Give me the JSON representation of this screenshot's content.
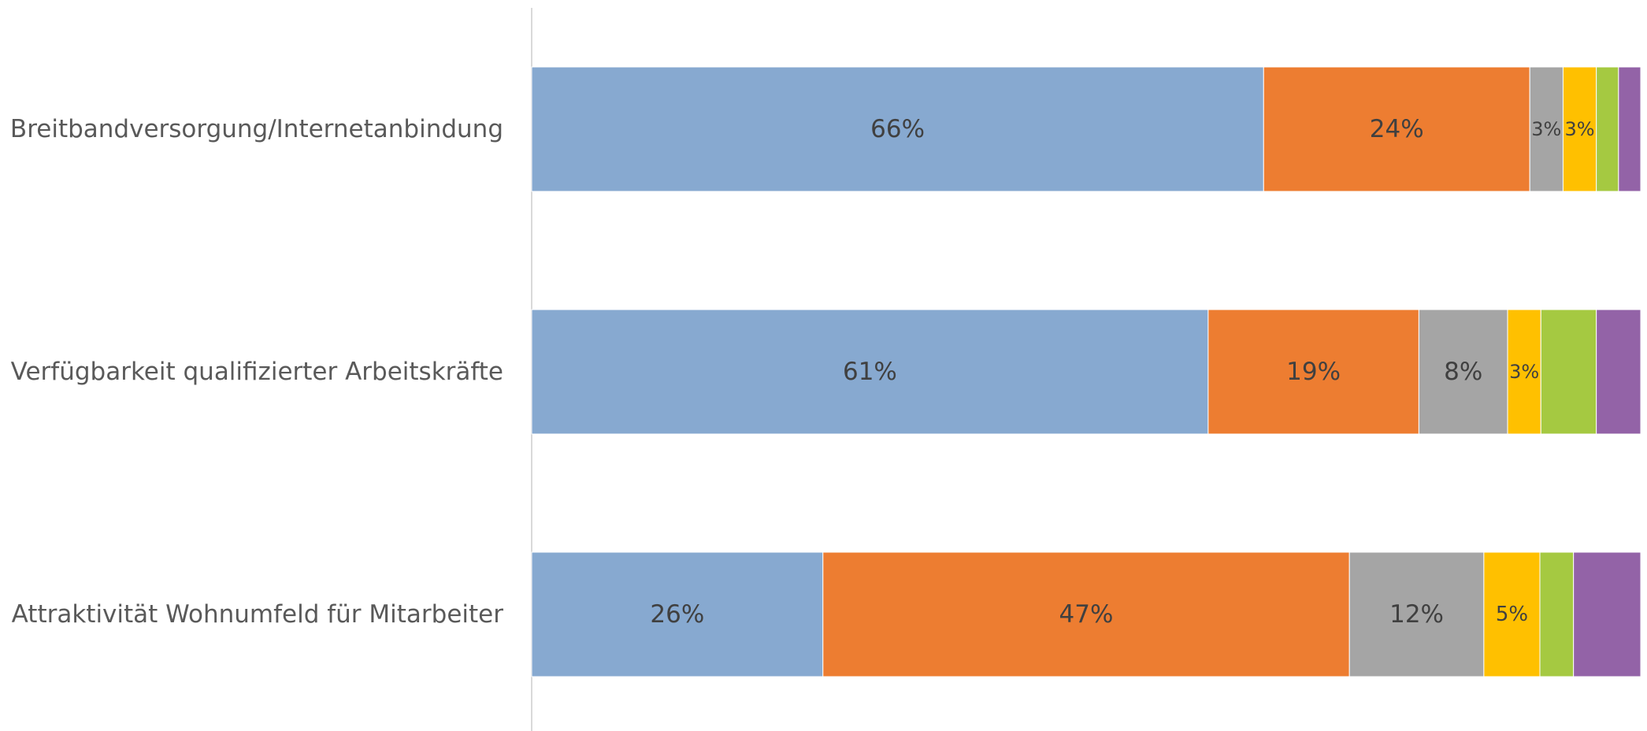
{
  "chart_data": {
    "type": "bar",
    "orientation": "horizontal",
    "stacked": "100%",
    "title": "",
    "xlabel": "",
    "ylabel": "",
    "xlim": [
      0,
      100
    ],
    "grid": false,
    "legend": "none",
    "categories": [
      "Breitbandversorgung/Internetanbindung",
      "Verfügbarkeit qualifizierter Arbeitskräfte",
      "Attraktivität Wohnumfeld für Mitarbeiter"
    ],
    "series": [
      {
        "color": "#87A9D0",
        "values": [
          66,
          61,
          26
        ],
        "labels": [
          "66%",
          "61%",
          "26%"
        ]
      },
      {
        "color": "#ED7D31",
        "values": [
          24,
          19,
          47
        ],
        "labels": [
          "24%",
          "19%",
          "47%"
        ]
      },
      {
        "color": "#A5A5A5",
        "values": [
          3,
          8,
          12
        ],
        "labels": [
          "3%",
          "8%",
          "12%"
        ]
      },
      {
        "color": "#FFC000",
        "values": [
          3,
          3,
          5
        ],
        "labels": [
          "3%",
          "3%",
          "5%"
        ]
      },
      {
        "color": "#A5C941",
        "values": [
          2,
          5,
          3
        ],
        "labels": [
          "",
          "",
          ""
        ]
      },
      {
        "color": "#9363A7",
        "values": [
          2,
          4,
          6
        ],
        "labels": [
          "",
          "",
          ""
        ]
      }
    ]
  }
}
